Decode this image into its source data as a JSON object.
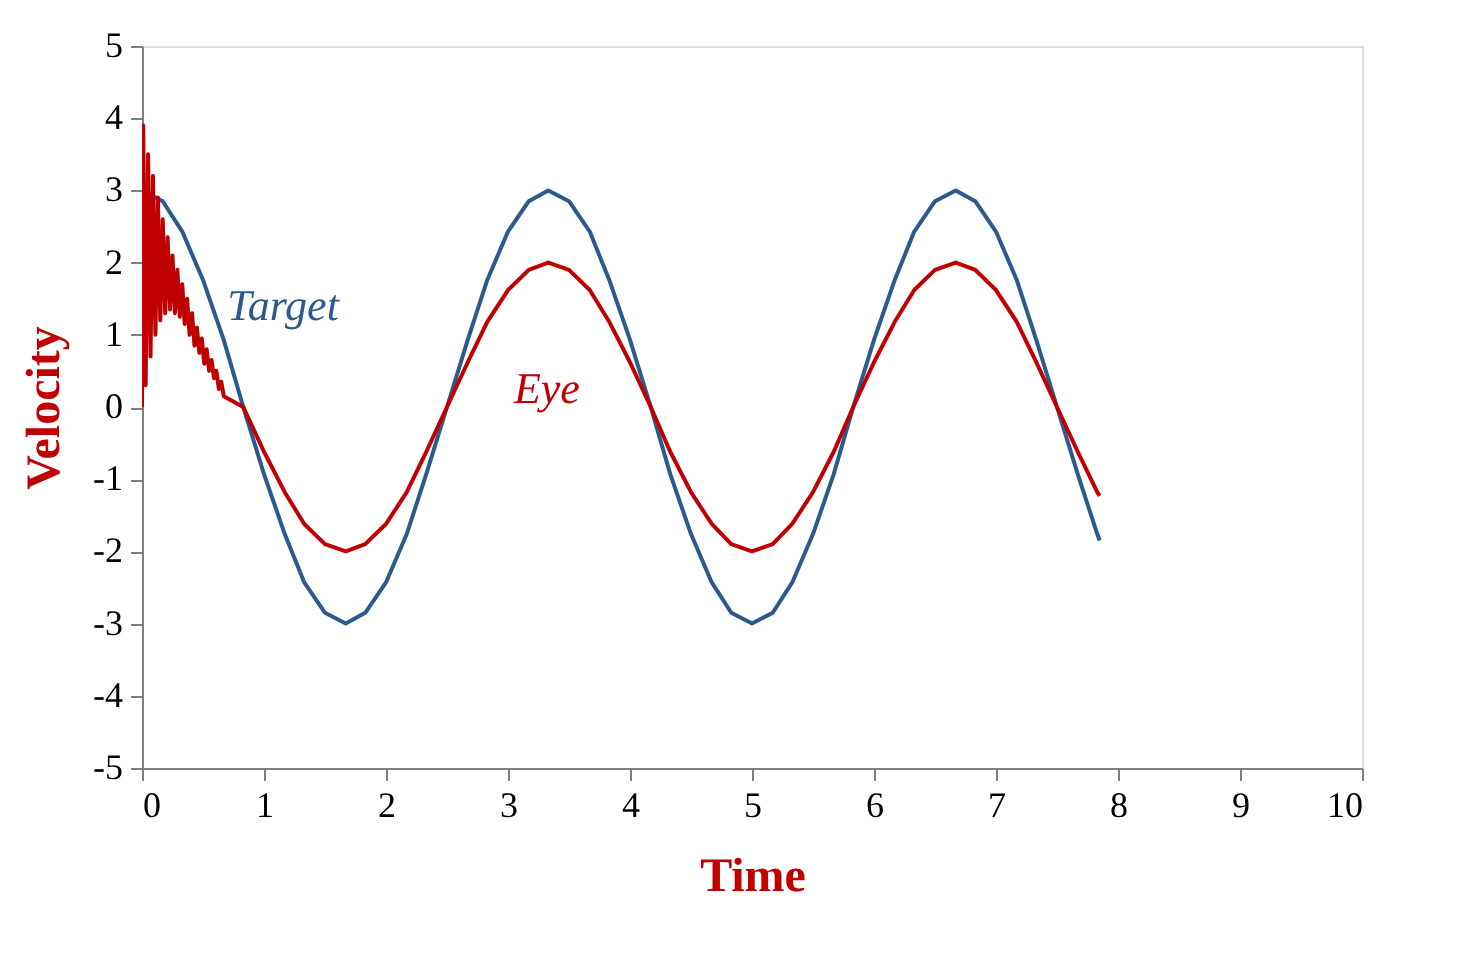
{
  "chart_data": {
    "type": "line",
    "xlabel": "Time",
    "ylabel": "Velocity",
    "xlim": [
      0,
      10
    ],
    "ylim": [
      -5,
      5
    ],
    "xticks": [
      0,
      1,
      2,
      3,
      4,
      5,
      6,
      7,
      8,
      9,
      10
    ],
    "yticks": [
      -5,
      -4,
      -3,
      -2,
      -1,
      0,
      1,
      2,
      3,
      4,
      5
    ],
    "grid": false,
    "legend": false,
    "marker": "none",
    "line_style": "solid",
    "series": [
      {
        "name": "Target",
        "color": "#2b5a8e",
        "x": [
          0,
          0.17,
          0.33,
          0.5,
          0.67,
          0.83,
          1,
          1.17,
          1.33,
          1.5,
          1.67,
          1.83,
          2,
          2.17,
          2.33,
          2.5,
          2.67,
          2.83,
          3,
          3.17,
          3.33,
          3.5,
          3.67,
          3.83,
          4,
          4.17,
          4.33,
          4.5,
          4.67,
          4.83,
          5,
          5.17,
          5.33,
          5.5,
          5.67,
          5.83,
          6,
          6.17,
          6.33,
          6.5,
          6.67,
          6.83,
          7,
          7.17,
          7.33,
          7.5,
          7.67,
          7.83,
          7.85
        ],
        "values": [
          3,
          2.85,
          2.43,
          1.76,
          0.93,
          0,
          -0.93,
          -1.76,
          -2.43,
          -2.85,
          -3,
          -2.85,
          -2.43,
          -1.76,
          -0.93,
          0,
          0.93,
          1.76,
          2.43,
          2.85,
          3,
          2.85,
          2.43,
          1.76,
          0.93,
          0,
          -0.93,
          -1.76,
          -2.43,
          -2.85,
          -3,
          -2.85,
          -2.43,
          -1.76,
          -0.93,
          0,
          0.93,
          1.76,
          2.43,
          2.85,
          3,
          2.85,
          2.43,
          1.76,
          0.93,
          0,
          -0.93,
          -1.76,
          -1.85
        ]
      },
      {
        "name": "Eye",
        "color": "#c00000",
        "x": [
          0,
          0.01,
          0.03,
          0.05,
          0.07,
          0.09,
          0.11,
          0.13,
          0.15,
          0.17,
          0.19,
          0.21,
          0.23,
          0.25,
          0.27,
          0.29,
          0.31,
          0.33,
          0.35,
          0.37,
          0.39,
          0.41,
          0.43,
          0.45,
          0.47,
          0.49,
          0.51,
          0.53,
          0.55,
          0.57,
          0.59,
          0.61,
          0.63,
          0.65,
          0.67,
          0.83,
          1,
          1.17,
          1.33,
          1.5,
          1.67,
          1.83,
          2,
          2.17,
          2.33,
          2.5,
          2.67,
          2.83,
          3,
          3.17,
          3.33,
          3.5,
          3.67,
          3.83,
          4,
          4.17,
          4.33,
          4.5,
          4.67,
          4.83,
          5,
          5.17,
          5.33,
          5.5,
          5.67,
          5.83,
          6,
          6.17,
          6.33,
          6.5,
          6.67,
          6.83,
          7,
          7.17,
          7.33,
          7.5,
          7.67,
          7.83,
          7.85
        ],
        "values": [
          0,
          3.9,
          0.3,
          3.5,
          0.7,
          3.2,
          1.0,
          2.9,
          1.2,
          2.6,
          1.3,
          2.35,
          1.35,
          2.1,
          1.3,
          1.9,
          1.25,
          1.7,
          1.15,
          1.5,
          1.0,
          1.3,
          0.85,
          1.1,
          0.75,
          0.95,
          0.6,
          0.8,
          0.5,
          0.65,
          0.4,
          0.5,
          0.25,
          0.35,
          0.15,
          0,
          -0.62,
          -1.18,
          -1.62,
          -1.9,
          -2,
          -1.9,
          -1.62,
          -1.18,
          -0.62,
          0,
          0.62,
          1.18,
          1.62,
          1.9,
          2,
          1.9,
          1.62,
          1.18,
          0.62,
          0,
          -0.62,
          -1.18,
          -1.62,
          -1.9,
          -2,
          -1.9,
          -1.62,
          -1.18,
          -0.62,
          0,
          0.62,
          1.18,
          1.62,
          1.9,
          2,
          1.9,
          1.62,
          1.18,
          0.62,
          0,
          -0.62,
          -1.18,
          -1.23
        ]
      }
    ]
  }
}
